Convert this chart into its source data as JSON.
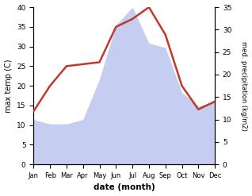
{
  "months": [
    "Jan",
    "Feb",
    "Mar",
    "Apr",
    "May",
    "Jun",
    "Jul",
    "Aug",
    "Sep",
    "Oct",
    "Nov",
    "Dec"
  ],
  "max_temp": [
    13.5,
    20,
    25,
    25.5,
    26,
    35,
    37,
    40,
    33,
    20,
    14,
    16
  ],
  "precipitation": [
    10,
    9,
    9,
    10,
    19,
    31,
    35,
    27,
    26,
    16,
    13,
    14
  ],
  "temp_color": "#c0392b",
  "precip_fill_color": "#c5cef0",
  "background_color": "#ffffff",
  "xlabel": "date (month)",
  "ylabel_left": "max temp (C)",
  "ylabel_right": "med. precipitation (kg/m2)",
  "ylim_left": [
    0,
    40
  ],
  "ylim_right": [
    0,
    35
  ],
  "temp_linewidth": 1.8
}
